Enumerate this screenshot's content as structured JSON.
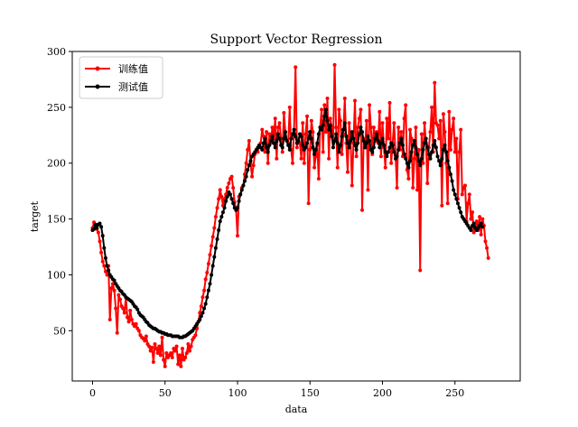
{
  "chart_data": {
    "type": "line",
    "title": "Support Vector Regression",
    "xlabel": "data",
    "ylabel": "target",
    "xlim": [
      -14,
      295
    ],
    "ylim": [
      5,
      300
    ],
    "xticks": [
      0,
      50,
      100,
      150,
      200,
      250
    ],
    "yticks": [
      50,
      100,
      150,
      200,
      250,
      300
    ],
    "grid": false,
    "legend_position": "top-left",
    "series": [
      {
        "name": "训练值",
        "color": "#ff0000",
        "marker": "circle",
        "values": [
          142,
          147,
          145,
          141,
          138,
          130,
          120,
          112,
          108,
          103,
          100,
          108,
          60,
          88,
          92,
          86,
          70,
          48,
          82,
          78,
          72,
          70,
          66,
          80,
          62,
          58,
          68,
          60,
          56,
          54,
          56,
          52,
          50,
          46,
          44,
          43,
          41,
          45,
          38,
          36,
          32,
          35,
          22,
          38,
          34,
          30,
          36,
          28,
          44,
          24,
          18,
          30,
          26,
          28,
          30,
          26,
          34,
          32,
          36,
          20,
          28,
          18,
          34,
          24,
          26,
          30,
          38,
          32,
          36,
          42,
          44,
          46,
          52,
          58,
          66,
          72,
          80,
          86,
          96,
          102,
          110,
          118,
          126,
          134,
          142,
          152,
          160,
          168,
          176,
          170,
          162,
          168,
          172,
          178,
          182,
          186,
          188,
          178,
          165,
          158,
          135,
          170,
          172,
          178,
          180,
          190,
          200,
          212,
          220,
          200,
          188,
          198,
          208,
          212,
          210,
          216,
          218,
          230,
          224,
          210,
          228,
          200,
          226,
          218,
          232,
          222,
          240,
          204,
          232,
          236,
          222,
          210,
          245,
          228,
          220,
          218,
          250,
          212,
          200,
          230,
          286,
          214,
          222,
          218,
          204,
          236,
          200,
          226,
          242,
          164,
          212,
          238,
          228,
          196,
          206,
          216,
          186,
          232,
          248,
          210,
          252,
          228,
          258,
          204,
          240,
          232,
          222,
          288,
          232,
          196,
          248,
          238,
          208,
          226,
          258,
          218,
          192,
          236,
          222,
          180,
          218,
          256,
          206,
          232,
          240,
          248,
          158,
          222,
          214,
          238,
          176,
          252,
          232,
          208,
          232,
          220,
          228,
          218,
          246,
          206,
          236,
          214,
          196,
          240,
          222,
          254,
          200,
          218,
          236,
          208,
          178,
          232,
          212,
          228,
          206,
          240,
          252,
          194,
          186,
          230,
          222,
          178,
          204,
          232,
          176,
          212,
          104,
          226,
          200,
          236,
          218,
          182,
          214,
          228,
          250,
          210,
          272,
          236,
          234,
          222,
          238,
          162,
          244,
          228,
          200,
          164,
          246,
          212,
          230,
          240,
          210,
          222,
          168,
          210,
          230,
          172,
          178,
          180,
          148,
          164,
          172,
          150,
          156,
          138,
          142,
          148,
          140,
          152,
          136,
          150,
          144,
          130,
          124,
          115
        ]
      },
      {
        "name": "测试值",
        "color": "#000000",
        "marker": "circle",
        "values": [
          140,
          141,
          145,
          142,
          145,
          146,
          143,
          135,
          124,
          115,
          108,
          104,
          100,
          98,
          96,
          95,
          92,
          90,
          88,
          86,
          85,
          83,
          82,
          80,
          79,
          78,
          77,
          76,
          74,
          72,
          71,
          69,
          66,
          64,
          63,
          62,
          60,
          58,
          57,
          55,
          54,
          53,
          52,
          52,
          51,
          50,
          49,
          49,
          48,
          48,
          47,
          47,
          46,
          46,
          46,
          45,
          45,
          45,
          45,
          45,
          44,
          44,
          44,
          45,
          45,
          46,
          47,
          48,
          49,
          50,
          52,
          54,
          56,
          58,
          60,
          63,
          66,
          70,
          74,
          80,
          86,
          92,
          100,
          108,
          116,
          124,
          132,
          140,
          148,
          152,
          156,
          160,
          166,
          170,
          174,
          172,
          168,
          164,
          160,
          158,
          160,
          166,
          172,
          176,
          180,
          184,
          188,
          194,
          198,
          202,
          206,
          208,
          210,
          212,
          214,
          216,
          214,
          212,
          218,
          222,
          214,
          210,
          216,
          220,
          224,
          218,
          214,
          220,
          226,
          222,
          216,
          214,
          222,
          228,
          220,
          216,
          212,
          222,
          226,
          230,
          224,
          218,
          220,
          226,
          224,
          216,
          212,
          214,
          218,
          222,
          228,
          222,
          214,
          208,
          212,
          218,
          226,
          232,
          230,
          234,
          242,
          248,
          238,
          230,
          234,
          224,
          214,
          220,
          226,
          218,
          210,
          216,
          224,
          230,
          236,
          224,
          218,
          214,
          220,
          228,
          222,
          216,
          212,
          218,
          226,
          232,
          228,
          220,
          214,
          218,
          224,
          220,
          212,
          210,
          214,
          222,
          226,
          220,
          214,
          218,
          222,
          216,
          210,
          206,
          210,
          214,
          218,
          216,
          210,
          204,
          206,
          212,
          218,
          222,
          216,
          208,
          204,
          200,
          196,
          202,
          210,
          216,
          220,
          214,
          208,
          202,
          198,
          204,
          212,
          218,
          222,
          214,
          208,
          204,
          210,
          216,
          220,
          214,
          206,
          202,
          198,
          204,
          212,
          216,
          210,
          202,
          196,
          190,
          184,
          176,
          172,
          168,
          164,
          160,
          156,
          152,
          150,
          148,
          146,
          144,
          142,
          140,
          144,
          146,
          142,
          140,
          142,
          144,
          146,
          143
        ]
      }
    ]
  }
}
